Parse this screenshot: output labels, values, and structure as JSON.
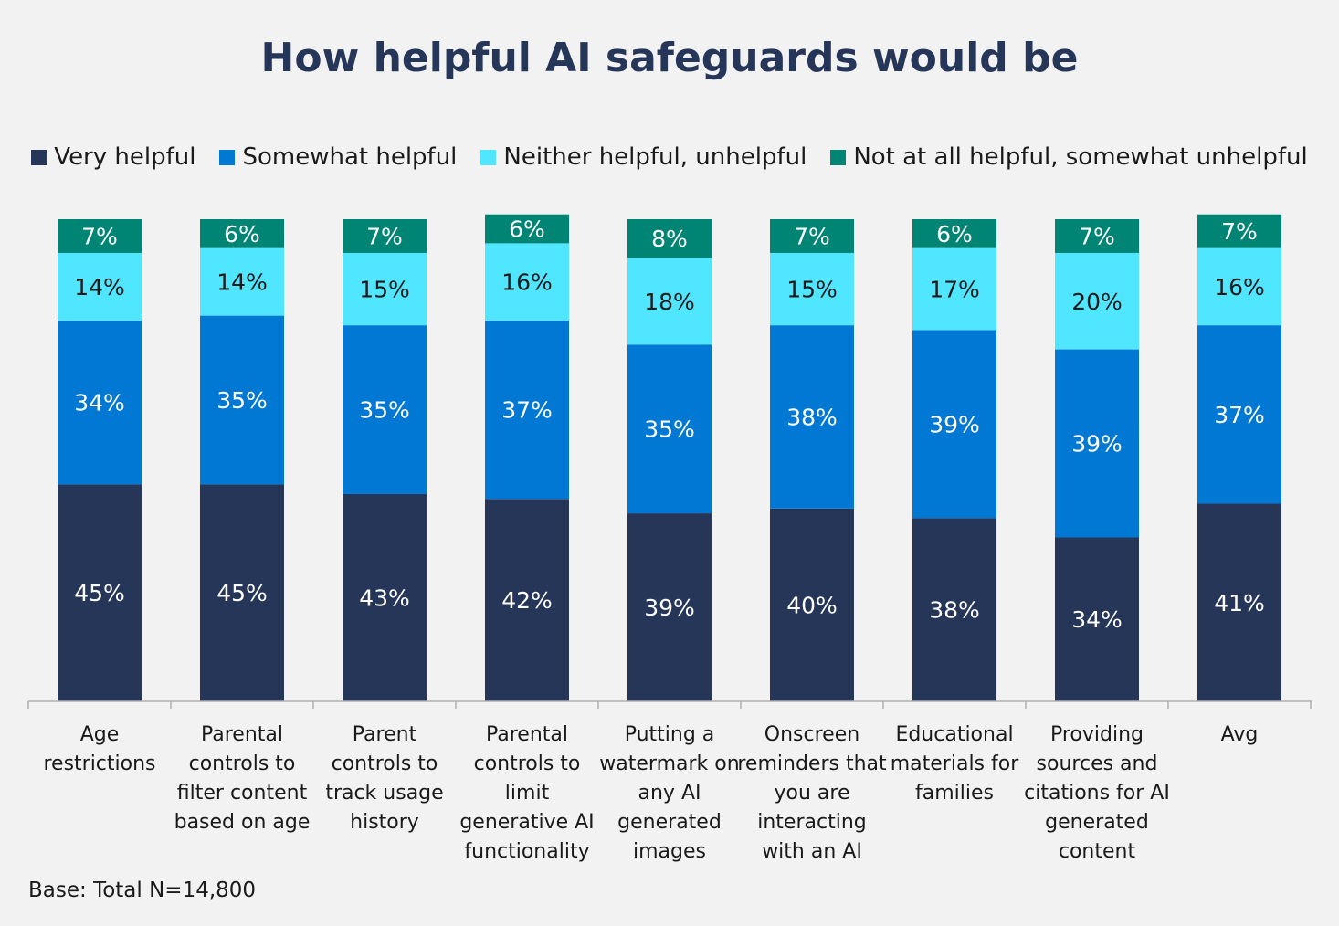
{
  "chart_data": {
    "type": "bar",
    "stacked": true,
    "title": "How helpful AI safeguards would be",
    "categories": [
      "Age restrictions",
      "Parental controls to filter content based on age",
      "Parent controls to track usage history",
      "Parental controls to limit generative AI functionality",
      "Putting a watermark on any AI generated images",
      "Onscreen reminders that you are interacting with an AI",
      "Educational materials for families",
      "Providing sources and citations for AI generated content",
      "Avg"
    ],
    "category_lines": [
      [
        "Age",
        "restrictions"
      ],
      [
        "Parental",
        "controls to",
        "filter content",
        "based on age"
      ],
      [
        "Parent",
        "controls to",
        "track usage",
        "history"
      ],
      [
        "Parental",
        "controls to",
        "limit",
        "generative AI",
        "functionality"
      ],
      [
        "Putting a",
        "watermark on",
        "any AI",
        "generated",
        "images"
      ],
      [
        "Onscreen",
        "reminders that",
        "you are",
        "interacting",
        "with an AI"
      ],
      [
        "Educational",
        "materials for",
        "families"
      ],
      [
        "Providing",
        "sources and",
        "citations for AI",
        "generated",
        "content"
      ],
      [
        "Avg"
      ]
    ],
    "series": [
      {
        "name": "Very helpful",
        "color": "#253659",
        "values": [
          45,
          45,
          43,
          42,
          39,
          40,
          38,
          34,
          41
        ]
      },
      {
        "name": "Somewhat helpful",
        "color": "#0078d4",
        "values": [
          34,
          35,
          35,
          37,
          35,
          38,
          39,
          39,
          37
        ]
      },
      {
        "name": "Neither helpful, unhelpful",
        "color": "#50e6ff",
        "values": [
          14,
          14,
          15,
          16,
          18,
          15,
          17,
          20,
          16
        ]
      },
      {
        "name": "Not at all helpful, somewhat unhelpful",
        "color": "#008575",
        "values": [
          7,
          6,
          7,
          6,
          8,
          7,
          6,
          7,
          7
        ]
      }
    ],
    "value_suffix": "%",
    "ylim": [
      0,
      100
    ],
    "legend_position": "top",
    "grid": false
  },
  "note": "Base: Total N=14,800"
}
